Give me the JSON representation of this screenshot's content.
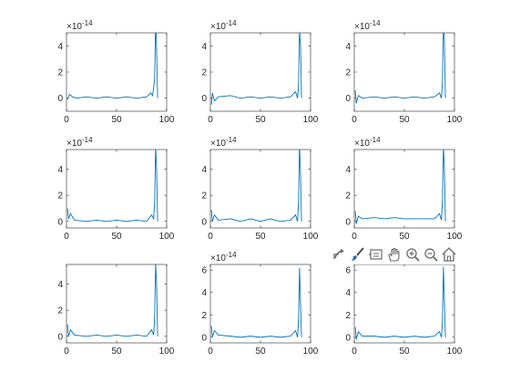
{
  "figure": {
    "toolbar": [
      {
        "name": "export-icon"
      },
      {
        "name": "brush-icon"
      },
      {
        "name": "data-tips-icon"
      },
      {
        "name": "pan-hand-icon"
      },
      {
        "name": "zoom-in-icon"
      },
      {
        "name": "zoom-out-icon"
      },
      {
        "name": "home-icon"
      }
    ]
  },
  "chart_data": [
    {
      "type": "line",
      "panel": "1-1",
      "exponent_label": "×10^-14",
      "xlim": [
        0,
        100
      ],
      "ylim": [
        -1,
        5
      ],
      "xticks": [
        "0",
        "50",
        "100"
      ],
      "yticks": [
        "0",
        "2",
        "4"
      ],
      "series_color": "#0072BD",
      "x": [
        1,
        3,
        6,
        10,
        20,
        30,
        40,
        50,
        60,
        70,
        80,
        84,
        86,
        88,
        89,
        90,
        91
      ],
      "y": [
        -0.1,
        0.3,
        0.1,
        0.0,
        0.1,
        0.0,
        0.1,
        0.0,
        0.1,
        0.0,
        0.1,
        0.4,
        0.2,
        1.5,
        6.0,
        3.5,
        0.0
      ]
    },
    {
      "type": "line",
      "panel": "1-2",
      "exponent_label": "×10^-14",
      "xlim": [
        0,
        100
      ],
      "ylim": [
        -1,
        5
      ],
      "xticks": [
        "0",
        "50",
        "100"
      ],
      "yticks": [
        "0",
        "2",
        "4"
      ],
      "series_color": "#0072BD",
      "x": [
        1,
        2,
        4,
        8,
        20,
        30,
        40,
        50,
        60,
        70,
        80,
        85,
        87,
        88,
        89,
        90,
        91
      ],
      "y": [
        -0.5,
        0.4,
        -0.2,
        0.1,
        0.2,
        0.0,
        0.1,
        0.0,
        0.1,
        0.0,
        0.1,
        0.5,
        0.0,
        1.0,
        5.2,
        4.0,
        0.0
      ]
    },
    {
      "type": "line",
      "panel": "1-3",
      "exponent_label": "×10^-14",
      "xlim": [
        0,
        100
      ],
      "ylim": [
        -1,
        5
      ],
      "xticks": [
        "0",
        "50",
        "100"
      ],
      "yticks": [
        "0",
        "2",
        "4"
      ],
      "series_color": "#0072BD",
      "x": [
        1,
        2,
        4,
        8,
        20,
        30,
        40,
        50,
        60,
        70,
        80,
        85,
        87,
        88,
        89,
        90,
        91
      ],
      "y": [
        0.6,
        -0.4,
        0.2,
        0.0,
        0.1,
        0.0,
        0.1,
        0.0,
        0.1,
        0.0,
        0.1,
        0.4,
        0.0,
        1.2,
        5.5,
        4.2,
        0.0
      ]
    },
    {
      "type": "line",
      "panel": "2-1",
      "exponent_label": "×10^-14",
      "xlim": [
        0,
        100
      ],
      "ylim": [
        -0.5,
        5.5
      ],
      "xticks": [
        "0",
        "50",
        "100"
      ],
      "yticks": [
        "0",
        "2",
        "4"
      ],
      "series_color": "#0072BD",
      "x": [
        1,
        2,
        4,
        8,
        20,
        30,
        40,
        50,
        60,
        70,
        80,
        85,
        87,
        88,
        89,
        90,
        91
      ],
      "y": [
        1.0,
        0.2,
        0.6,
        0.1,
        0.0,
        0.1,
        0.0,
        0.1,
        0.0,
        0.1,
        0.0,
        0.5,
        0.2,
        1.5,
        5.8,
        3.8,
        0.0
      ]
    },
    {
      "type": "line",
      "panel": "2-2",
      "exponent_label": "×10^-14",
      "xlim": [
        0,
        100
      ],
      "ylim": [
        -0.5,
        5.5
      ],
      "xticks": [
        "0",
        "50",
        "100"
      ],
      "yticks": [
        "0",
        "2",
        "4"
      ],
      "series_color": "#0072BD",
      "x": [
        1,
        2,
        4,
        8,
        20,
        30,
        40,
        50,
        60,
        70,
        80,
        85,
        87,
        88,
        89,
        90,
        91
      ],
      "y": [
        0.9,
        0.0,
        0.5,
        0.1,
        0.2,
        0.0,
        0.2,
        0.0,
        0.2,
        0.0,
        0.1,
        0.5,
        0.0,
        1.5,
        6.0,
        3.5,
        0.0
      ]
    },
    {
      "type": "line",
      "panel": "2-3",
      "exponent_label": "×10^-14",
      "xlim": [
        0,
        100
      ],
      "ylim": [
        -0.5,
        5.5
      ],
      "xticks": [
        "0",
        "50",
        "100"
      ],
      "yticks": [
        "0",
        "2",
        "4"
      ],
      "series_color": "#0072BD",
      "x": [
        1,
        2,
        4,
        8,
        20,
        30,
        40,
        50,
        60,
        70,
        80,
        85,
        87,
        88,
        89,
        90,
        91
      ],
      "y": [
        0.8,
        -0.2,
        0.4,
        0.2,
        0.3,
        0.2,
        0.3,
        0.2,
        0.2,
        0.2,
        0.2,
        0.6,
        0.1,
        1.5,
        5.8,
        4.0,
        0.0
      ]
    },
    {
      "type": "line",
      "panel": "3-1",
      "exponent_label": "",
      "xlim": [
        0,
        100
      ],
      "ylim": [
        -0.5,
        5.5
      ],
      "xticks": [
        "0",
        "50",
        "100"
      ],
      "yticks": [
        "0",
        "2",
        "4"
      ],
      "series_color": "#0072BD",
      "x": [
        1,
        2,
        4,
        8,
        20,
        30,
        40,
        50,
        60,
        70,
        80,
        85,
        87,
        88,
        89,
        90,
        91
      ],
      "y": [
        0.9,
        0.0,
        0.5,
        0.1,
        0.0,
        0.1,
        0.0,
        0.1,
        0.0,
        0.1,
        0.0,
        0.5,
        0.1,
        1.5,
        5.6,
        3.8,
        0.0
      ]
    },
    {
      "type": "line",
      "panel": "3-2",
      "exponent_label": "×10^-14",
      "xlim": [
        0,
        100
      ],
      "ylim": [
        -0.5,
        6.5
      ],
      "xticks": [
        "0",
        "50",
        "100"
      ],
      "yticks": [
        "0",
        "2",
        "4",
        "6"
      ],
      "series_color": "#0072BD",
      "x": [
        1,
        2,
        4,
        8,
        20,
        30,
        40,
        50,
        60,
        70,
        80,
        85,
        87,
        88,
        89,
        90,
        91
      ],
      "y": [
        1.0,
        0.0,
        0.6,
        0.2,
        0.1,
        0.0,
        0.1,
        0.0,
        0.1,
        0.0,
        0.1,
        0.6,
        0.0,
        1.5,
        6.2,
        3.0,
        0.0
      ]
    },
    {
      "type": "line",
      "panel": "3-3",
      "exponent_label": "",
      "xlim": [
        0,
        100
      ],
      "ylim": [
        -0.5,
        6.5
      ],
      "xticks": [
        "0",
        "50",
        "100"
      ],
      "yticks": [
        "0",
        "2",
        "4",
        "6"
      ],
      "series_color": "#0072BD",
      "x": [
        1,
        2,
        4,
        8,
        20,
        30,
        40,
        50,
        60,
        70,
        80,
        85,
        87,
        88,
        89,
        90,
        91
      ],
      "y": [
        0.9,
        -0.2,
        0.5,
        0.1,
        0.1,
        0.0,
        0.1,
        0.0,
        0.1,
        0.0,
        0.1,
        0.5,
        0.0,
        1.4,
        6.3,
        3.2,
        0.0
      ]
    }
  ]
}
